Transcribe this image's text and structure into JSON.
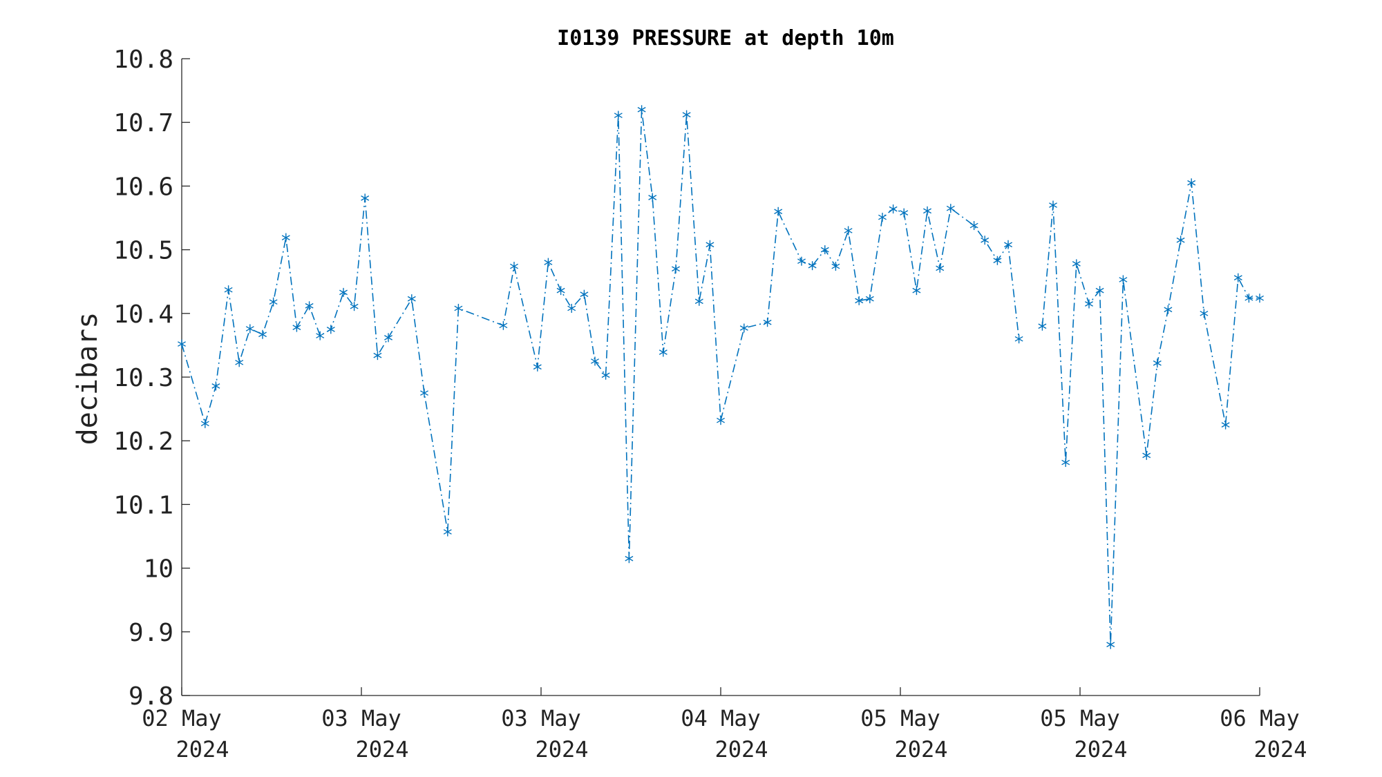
{
  "colors": {
    "series": "#0072BD",
    "axis": "#262626"
  },
  "chart_data": {
    "type": "line",
    "title": "I0139 PRESSURE at depth 10m",
    "xlabel": "",
    "ylabel": "decibars",
    "ylim": [
      9.8,
      10.8
    ],
    "yticks": [
      "10.8",
      "10.7",
      "10.6",
      "10.5",
      "10.4",
      "10.3",
      "10.2",
      "10.1",
      "10",
      "9.9",
      "9.8"
    ],
    "xticks": [
      {
        "label": [
          "02 May",
          "2024"
        ]
      },
      {
        "label": [
          "03 May",
          "2024"
        ]
      },
      {
        "label": [
          "03 May",
          "2024"
        ]
      },
      {
        "label": [
          "04 May",
          "2024"
        ]
      },
      {
        "label": [
          "05 May",
          "2024"
        ]
      },
      {
        "label": [
          "05 May",
          "2024"
        ]
      },
      {
        "label": [
          "06 May",
          "2024"
        ]
      }
    ],
    "xrange": [
      0,
      6
    ],
    "line_style": "dash-dot",
    "marker": "asterisk",
    "grid": false,
    "series": [
      {
        "x": [
          0.0,
          0.13,
          0.19,
          0.26,
          0.32,
          0.38,
          0.45,
          0.51,
          0.58,
          0.64,
          0.71,
          0.77,
          0.83,
          0.9,
          0.96,
          1.02,
          1.09,
          1.15,
          1.28,
          1.35,
          1.48,
          1.54,
          1.79,
          1.85,
          1.98,
          2.04,
          2.11,
          2.17,
          2.24,
          2.3,
          2.36,
          2.43,
          2.49,
          2.56,
          2.62,
          2.68,
          2.75,
          2.81,
          2.88,
          2.94,
          3.0,
          3.13,
          3.26,
          3.32,
          3.45,
          3.51,
          3.58,
          3.64,
          3.71,
          3.77,
          3.83,
          3.9,
          3.96,
          4.02,
          4.09,
          4.15,
          4.22,
          4.28,
          4.41,
          4.47,
          4.54,
          4.6,
          4.66,
          null,
          4.79,
          4.85,
          4.92,
          4.98,
          5.05,
          5.11,
          5.17,
          5.24,
          5.37,
          5.43,
          5.49,
          5.56,
          5.62,
          5.69,
          5.81,
          5.88,
          5.94,
          6.0
        ],
        "y": [
          10.352,
          10.227,
          10.286,
          10.437,
          10.323,
          10.376,
          10.367,
          10.418,
          10.519,
          10.378,
          10.412,
          10.365,
          10.375,
          10.433,
          10.411,
          10.581,
          10.334,
          10.362,
          10.423,
          10.275,
          10.057,
          10.408,
          10.381,
          10.474,
          10.316,
          10.48,
          10.436,
          10.408,
          10.43,
          10.325,
          10.303,
          10.711,
          10.015,
          10.72,
          10.582,
          10.339,
          10.47,
          10.712,
          10.419,
          10.508,
          10.232,
          10.377,
          10.386,
          10.56,
          10.482,
          10.475,
          10.5,
          10.474,
          10.53,
          10.42,
          10.423,
          10.551,
          10.564,
          10.558,
          10.436,
          10.561,
          10.471,
          10.565,
          10.538,
          10.515,
          10.483,
          10.508,
          10.36,
          null,
          10.38,
          10.57,
          10.166,
          10.478,
          10.415,
          10.436,
          9.88,
          10.453,
          10.177,
          10.322,
          10.406,
          10.515,
          10.605,
          10.4,
          10.225,
          10.456,
          10.424,
          10.424
        ]
      }
    ]
  }
}
